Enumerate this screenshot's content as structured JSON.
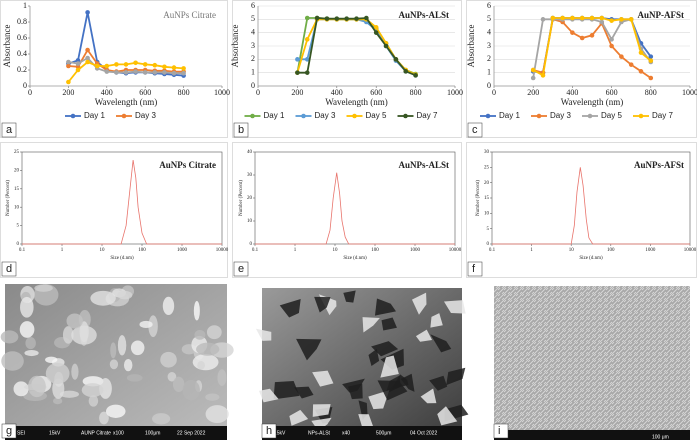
{
  "chart_data": [
    {
      "type": "line",
      "title": "AuNPs Citrate",
      "xlabel": "Wavelength (nm)",
      "ylabel": "Absorbance",
      "markers": true,
      "grid": false,
      "x": [
        200,
        250,
        300,
        350,
        400,
        450,
        500,
        550,
        600,
        650,
        700,
        750,
        800
      ],
      "xlim": [
        0,
        1000
      ],
      "xticks": [
        0,
        200,
        400,
        600,
        800,
        1000
      ],
      "ylim": [
        0,
        1
      ],
      "yticks": [
        0,
        0.2,
        0.4,
        0.6,
        0.8,
        1
      ],
      "series": [
        {
          "name": "Day 1",
          "color": "#4472c4",
          "values": [
            0.28,
            0.32,
            0.92,
            0.3,
            0.2,
            0.17,
            0.16,
            0.17,
            0.17,
            0.16,
            0.15,
            0.14,
            0.13
          ]
        },
        {
          "name": "Day 3",
          "color": "#ed7d31",
          "values": [
            0.25,
            0.24,
            0.45,
            0.28,
            0.2,
            0.18,
            0.2,
            0.2,
            0.2,
            0.19,
            0.19,
            0.18,
            0.18
          ]
        },
        {
          "color": "#a5a5a5",
          "values": [
            0.3,
            0.28,
            0.35,
            0.22,
            0.18,
            0.17,
            0.17,
            0.18,
            0.17,
            0.17,
            0.17,
            0.16,
            0.16
          ]
        },
        {
          "color": "#ffc000",
          "values": [
            0.05,
            0.2,
            0.3,
            0.25,
            0.25,
            0.27,
            0.27,
            0.29,
            0.27,
            0.26,
            0.24,
            0.23,
            0.22
          ]
        }
      ]
    },
    {
      "type": "line",
      "title": "AuNPs-ALSt",
      "xlabel": "Wavelength (nm)",
      "ylabel": "Absorbance",
      "markers": true,
      "grid": true,
      "x": [
        200,
        250,
        300,
        350,
        400,
        450,
        500,
        550,
        600,
        650,
        700,
        750,
        800
      ],
      "xlim": [
        0,
        1000
      ],
      "xticks": [
        0,
        200,
        400,
        600,
        800,
        1000
      ],
      "ylim": [
        0,
        6
      ],
      "yticks": [
        0,
        1,
        2,
        3,
        4,
        5,
        6
      ],
      "series": [
        {
          "name": "Day 1",
          "color": "#70ad47",
          "values": [
            1,
            5.1,
            5.1,
            5.05,
            5,
            5,
            5,
            5,
            4.3,
            3.2,
            2,
            1.2,
            0.9
          ]
        },
        {
          "name": "Day 3",
          "color": "#5b9bd5",
          "values": [
            2,
            2,
            5,
            5,
            5,
            5,
            5,
            4.8,
            4.2,
            3,
            1.9,
            1.1,
            0.8
          ]
        },
        {
          "name": "Day 5",
          "color": "#ffc000",
          "values": [
            1,
            3.5,
            5,
            5,
            5,
            5,
            5,
            5,
            4.4,
            3.2,
            2,
            1.2,
            0.85
          ]
        },
        {
          "name": "Day 7",
          "color": "#375623",
          "values": [
            1,
            1,
            5.1,
            5.05,
            5.05,
            5.05,
            5.05,
            5.1,
            4,
            3,
            2,
            1.1,
            0.8
          ]
        }
      ]
    },
    {
      "type": "line",
      "title": "AuNP-AFSt",
      "xlabel": "Wavelength (nm)",
      "ylabel": "Absorbance",
      "markers": true,
      "grid": true,
      "x": [
        200,
        250,
        300,
        350,
        400,
        450,
        500,
        550,
        600,
        650,
        700,
        750,
        800
      ],
      "xlim": [
        0,
        1000
      ],
      "xticks": [
        0,
        200,
        400,
        600,
        800,
        1000
      ],
      "ylim": [
        0,
        6
      ],
      "yticks": [
        0,
        1,
        2,
        3,
        4,
        5,
        6
      ],
      "series": [
        {
          "name": "Day 1",
          "color": "#4472c4",
          "values": [
            1.1,
            1,
            5.1,
            5.1,
            5.1,
            5.1,
            5.1,
            5.1,
            5,
            5,
            5,
            3.2,
            2.2
          ]
        },
        {
          "name": "Day 3",
          "color": "#ed7d31",
          "values": [
            1.2,
            1,
            5,
            4.8,
            4,
            3.6,
            3.8,
            4.7,
            3,
            2.2,
            1.6,
            1.1,
            0.6
          ]
        },
        {
          "name": "Day 5",
          "color": "#a5a5a5",
          "values": [
            0.6,
            5,
            5,
            5,
            5,
            5,
            5,
            4.8,
            3.5,
            4.8,
            5,
            2.8,
            1.8
          ]
        },
        {
          "name": "Day 7",
          "color": "#ffc000",
          "values": [
            1.2,
            0.8,
            5.1,
            5.1,
            5.1,
            5.1,
            5.1,
            5.1,
            4.9,
            5,
            5,
            2.5,
            1.9
          ]
        }
      ]
    },
    {
      "type": "line",
      "title": "AuNPs Citrate",
      "xlabel": "Size (d.nm)",
      "ylabel": "Number (Percent)",
      "markers": false,
      "grid": false,
      "xscale": "log",
      "x": [
        0.1,
        30,
        40,
        50,
        60,
        70,
        80,
        100,
        130,
        10000
      ],
      "xlim": [
        0.1,
        10000
      ],
      "xticks": [
        0.1,
        1,
        10,
        100,
        1000,
        10000
      ],
      "ylim": [
        0,
        25
      ],
      "yticks": [
        0,
        5,
        10,
        15,
        20,
        25
      ],
      "series": [
        {
          "color": "#e8736b",
          "values": [
            0,
            0,
            5,
            15,
            22.8,
            18,
            10,
            3,
            0,
            0
          ]
        }
      ]
    },
    {
      "type": "line",
      "title": "AuNPs-ALSt",
      "xlabel": "Size (d.nm)",
      "ylabel": "Number (Percent)",
      "markers": false,
      "grid": false,
      "xscale": "log",
      "x": [
        0.1,
        6,
        7.5,
        9,
        11,
        13,
        15,
        18,
        22,
        10000
      ],
      "xlim": [
        0.1,
        10000
      ],
      "xticks": [
        0.1,
        1,
        10,
        100,
        1000,
        10000
      ],
      "ylim": [
        0,
        40
      ],
      "yticks": [
        0,
        10,
        20,
        30,
        40
      ],
      "series": [
        {
          "color": "#e8736b",
          "values": [
            0,
            0,
            6,
            20,
            31,
            22,
            10,
            3,
            0,
            0
          ]
        }
      ]
    },
    {
      "type": "line",
      "title": "AuNPs-AFSt",
      "xlabel": "Size (d.nm)",
      "ylabel": "Number (Percent)",
      "markers": false,
      "grid": false,
      "xscale": "log",
      "x": [
        0.1,
        10,
        12,
        14,
        17,
        20,
        24,
        28,
        35,
        10000
      ],
      "xlim": [
        0.1,
        10000
      ],
      "xticks": [
        0.1,
        1,
        10,
        100,
        1000,
        10000
      ],
      "ylim": [
        0,
        30
      ],
      "yticks": [
        0,
        5,
        10,
        15,
        20,
        25,
        30
      ],
      "series": [
        {
          "color": "#e8736b",
          "values": [
            0,
            0,
            6,
            17,
            25,
            19,
            8,
            2,
            0,
            0
          ]
        }
      ]
    }
  ],
  "panels": [
    "a",
    "b",
    "c",
    "d",
    "e",
    "f",
    "g",
    "h",
    "i"
  ],
  "images": [
    {
      "texts": [
        "SEI",
        "15kV",
        "AUNP Citrate",
        "x100",
        "100μm",
        "22 Sep 2022"
      ]
    },
    {
      "texts": [
        "15kV",
        "NPs-ALSt",
        "x40",
        "500μm",
        "04 Oct 2022"
      ]
    },
    {
      "texts": [
        "100 μm"
      ]
    }
  ]
}
